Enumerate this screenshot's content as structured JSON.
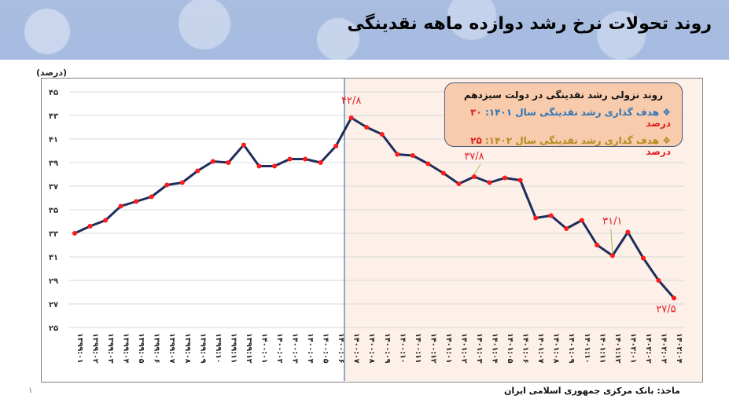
{
  "header": {
    "title": "روند تحولات نرخ رشد دوازده ماهه نقدینگی"
  },
  "legend": {
    "title": "روند نزولی رشد نقدینگی در دولت سیزدهم",
    "items": [
      {
        "bullet": "❖",
        "label": "هدف گذاری رشد نقدینگی سال ۱۴۰۱:",
        "value": "۳۰ درصد",
        "color": "#2e75b6"
      },
      {
        "bullet": "❖",
        "label": "هدف گذاری رشد نقدینگی سال ۱۴۰۲:",
        "value": "۲۵ درصد",
        "color": "#b48a1e"
      }
    ]
  },
  "footer": {
    "source": "ماخذ: بانک مرکزی جمهوری اسلامی ایران",
    "page_number": "۱"
  },
  "chart_data": {
    "type": "line",
    "title": "روند تحولات نرخ رشد دوازده ماهه نقدینگی",
    "xlabel": "",
    "ylabel": "(درصد)",
    "ylim": [
      25,
      45
    ],
    "yticks": [
      "۲۵",
      "۲۷",
      "۲۹",
      "۳۱",
      "۳۳",
      "۳۵",
      "۳۷",
      "۳۹",
      "۴۱",
      "۴۳",
      "۴۵"
    ],
    "ytick_values": [
      25,
      27,
      29,
      31,
      33,
      35,
      37,
      39,
      41,
      43,
      45
    ],
    "grid": true,
    "categories": [
      "۱۳۹۹:۰۱",
      "۱۳۹۹:۰۲",
      "۱۳۹۹:۰۳",
      "۱۳۹۹:۰۴",
      "۱۳۹۹:۰۵",
      "۱۳۹۹:۰۶",
      "۱۳۹۹:۰۷",
      "۱۳۹۹:۰۸",
      "۱۳۹۹:۰۹",
      "۱۳۹۹:۱۰",
      "۱۳۹۹:۱۱",
      "۱۳۹۹:۱۲",
      "۱۴۰۰:۰۱",
      "۱۴۰۰:۰۲",
      "۱۴۰۰:۰۳",
      "۱۴۰۰:۰۴",
      "۱۴۰۰:۰۵",
      "۱۴۰۰:۰۶",
      "۱۴۰۰:۰۷",
      "۱۴۰۰:۰۸",
      "۱۴۰۰:۰۹",
      "۱۴۰۰:۱۰",
      "۱۴۰۰:۱۱",
      "۱۴۰۰:۱۲",
      "۱۴۰۱:۰۱",
      "۱۴۰۱:۰۲",
      "۱۴۰۱:۰۳",
      "۱۴۰۱:۰۴",
      "۱۴۰۱:۰۵",
      "۱۴۰۱:۰۶",
      "۱۴۰۱:۰۷",
      "۱۴۰۱:۰۸",
      "۱۴۰۱:۰۹",
      "۱۴۰۱:۱۰",
      "۱۴۰۱:۱۱",
      "۱۴۰۱:۱۲",
      "۱۴۰۲:۰۱",
      "۱۴۰۲:۰۲",
      "۱۴۰۲:۰۳",
      "۱۴۰۲:۰۴"
    ],
    "series": [
      {
        "name": "نرخ رشد نقدینگی",
        "line_color": "#1f2d5a",
        "marker_color": "#ff1a1a",
        "values": [
          33.0,
          33.6,
          34.1,
          35.3,
          35.7,
          36.1,
          37.1,
          37.3,
          38.3,
          39.1,
          39.0,
          40.5,
          38.7,
          38.7,
          39.3,
          39.3,
          39.0,
          40.4,
          42.8,
          42.0,
          41.4,
          39.7,
          39.6,
          38.9,
          38.1,
          37.2,
          37.8,
          37.3,
          37.7,
          37.5,
          34.3,
          34.5,
          33.4,
          34.1,
          32.0,
          31.1,
          33.1,
          30.9,
          29.0,
          27.5
        ]
      }
    ],
    "annotations": [
      {
        "index": 18,
        "text": "۴۲/۸"
      },
      {
        "index": 26,
        "text": "۳۷/۸"
      },
      {
        "index": 35,
        "text": "۳۱/۱"
      },
      {
        "index": 39,
        "text": "۲۷/۵"
      }
    ],
    "shaded_region": {
      "from_index": 17.5,
      "to_index": 39.5,
      "color": "#fcf0e8",
      "divider_color": "#6f8db0"
    }
  }
}
